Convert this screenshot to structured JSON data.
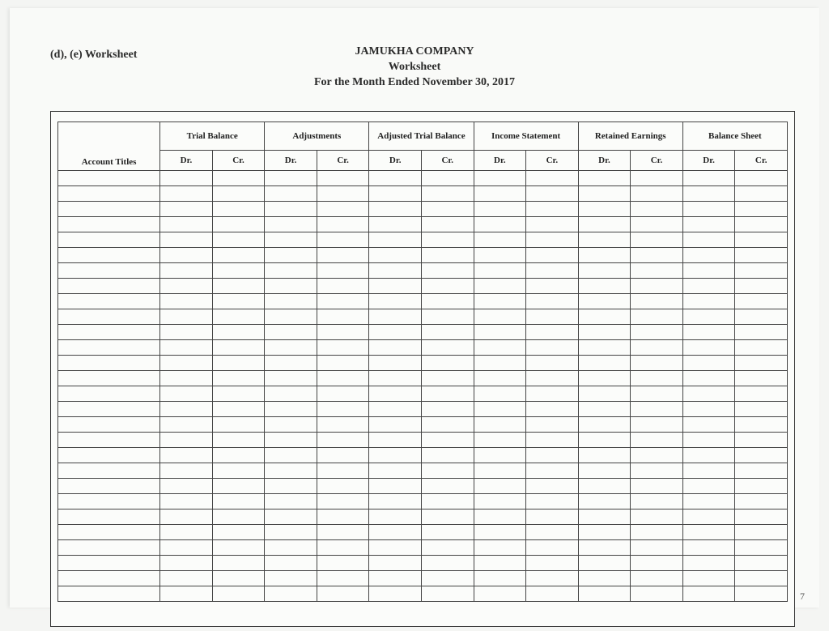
{
  "header": {
    "section_label": "(d), (e) Worksheet",
    "company": "JAMUKHA COMPANY",
    "title": "Worksheet",
    "period": "For the Month Ended November 30, 2017"
  },
  "table": {
    "account_titles_label": "Account Titles",
    "groups": [
      "Trial Balance",
      "Adjustments",
      "Adjusted Trial Balance",
      "Income Statement",
      "Retained Earnings",
      "Balance   Sheet"
    ],
    "sub_dr": "Dr.",
    "sub_cr": "Cr.",
    "blank_rows": 28
  },
  "page_number": "7",
  "style": {
    "background_color": "#f9faf8",
    "border_color": "#444444",
    "text_color": "#2b2b2b",
    "font_family": "Times New Roman"
  }
}
